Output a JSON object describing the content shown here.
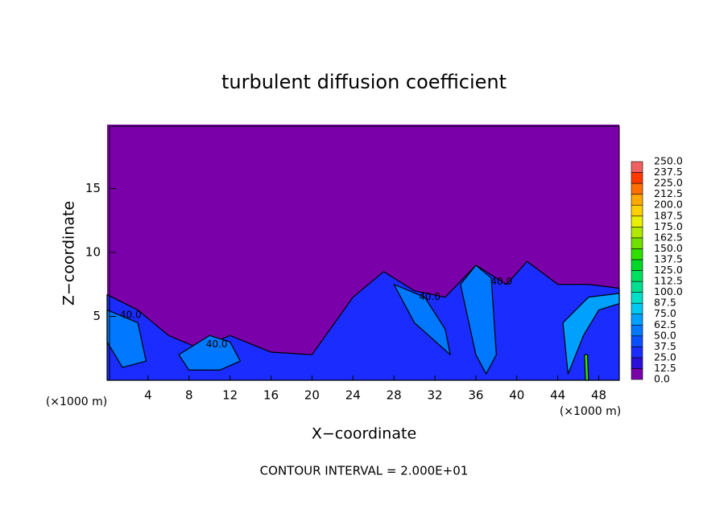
{
  "chart_data": {
    "type": "contour",
    "title": "turbulent diffusion coefficient",
    "xlabel": "X−coordinate",
    "ylabel": "Z−coordinate",
    "xunit": "(×1000 m)",
    "yunit": "(×1000 m)",
    "footer": "CONTOUR INTERVAL = 2.000E+01",
    "xlim": [
      0,
      50
    ],
    "ylim": [
      0,
      20
    ],
    "xticks": [
      4,
      8,
      12,
      16,
      20,
      24,
      28,
      32,
      36,
      40,
      44,
      48
    ],
    "yticks": [
      5,
      10,
      15
    ],
    "background": {
      "value": 0
    },
    "regions": [
      {
        "value": 25,
        "x": [
          0,
          3,
          6,
          9,
          12,
          16,
          20,
          24,
          27,
          30,
          33,
          36,
          39,
          41,
          44,
          47,
          50,
          50,
          0
        ],
        "z": [
          6.7,
          5.5,
          3.5,
          2.5,
          3.5,
          2.2,
          2.0,
          6.5,
          8.5,
          7.0,
          6.5,
          9.0,
          7.5,
          9.3,
          7.5,
          7.5,
          7.2,
          0,
          0
        ]
      },
      {
        "value": 50,
        "x": [
          0,
          3,
          3.8,
          1.5,
          0
        ],
        "z": [
          5.5,
          4.5,
          1.5,
          1.0,
          3.0
        ]
      },
      {
        "value": 50,
        "x": [
          7,
          10,
          12,
          13,
          11,
          8
        ],
        "z": [
          2.0,
          3.5,
          3.0,
          1.5,
          0.8,
          0.8
        ]
      },
      {
        "value": 50,
        "x": [
          34.5,
          36,
          37.5,
          38,
          37,
          36
        ],
        "z": [
          7.5,
          9.0,
          8.0,
          2.0,
          0.5,
          2.0
        ]
      },
      {
        "value": 62.5,
        "x": [
          44.5,
          47,
          50,
          50,
          48,
          46.5,
          45
        ],
        "z": [
          4.5,
          6.5,
          6.8,
          6.0,
          5.5,
          3.5,
          0.5
        ]
      },
      {
        "value": 50,
        "x": [
          28,
          31,
          33,
          33.5,
          30
        ],
        "z": [
          7.5,
          6.5,
          4.0,
          2.0,
          4.5
        ]
      },
      {
        "value": 137.5,
        "x": [
          46.6,
          46.9,
          47.0,
          46.7
        ],
        "z": [
          2.0,
          2.0,
          0,
          0
        ]
      }
    ],
    "contour_labels": [
      {
        "text": "40.0",
        "x": 2.3,
        "z": 5.1
      },
      {
        "text": "40.0",
        "x": 10.7,
        "z": 2.8
      },
      {
        "text": "40.0",
        "x": 31.5,
        "z": 6.5
      },
      {
        "text": "40.0",
        "x": 38.5,
        "z": 7.7
      }
    ],
    "colorbar": {
      "levels": [
        {
          "value": 0,
          "label": "0.0"
        },
        12.5,
        25,
        37.5,
        50,
        62.5,
        75,
        87.5,
        100,
        112.5,
        125,
        137.5,
        150,
        162.5,
        175,
        187.5,
        200,
        212.5,
        225,
        237.5,
        250
      ],
      "level_labels": [
        "0.0",
        "12.5",
        "25.0",
        "37.5",
        "50.0",
        "62.5",
        "75.0",
        "87.5",
        "100.0",
        "112.5",
        "125.0",
        "137.5",
        "150.0",
        "162.5",
        "175.0",
        "187.5",
        "200.0",
        "212.5",
        "225.0",
        "237.5",
        "250.0"
      ],
      "colors": [
        "#7a00aa",
        "#2a10d8",
        "#1a2cff",
        "#0a50ff",
        "#0078ff",
        "#00a0ff",
        "#00c8f0",
        "#00e0c8",
        "#00e090",
        "#00e060",
        "#00d828",
        "#30e000",
        "#70e000",
        "#b0e800",
        "#e8f000",
        "#ffd000",
        "#ffa800",
        "#ff7000",
        "#ff3800",
        "#f06060"
      ]
    }
  }
}
